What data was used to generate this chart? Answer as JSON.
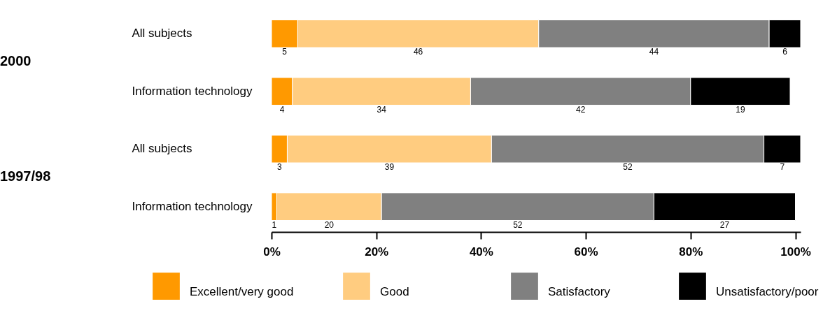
{
  "chart_data": {
    "type": "bar",
    "orientation": "horizontal",
    "stacked": true,
    "data_labels": true,
    "legend": "bottom",
    "categories": [
      "All subjects",
      "Information technology",
      "All subjects",
      "Information technology"
    ],
    "series": [
      {
        "name": "Excellent/very good",
        "color": "#ff9900",
        "values": [
          5,
          4,
          3,
          1
        ]
      },
      {
        "name": "Good",
        "color": "#ffcc80",
        "values": [
          46,
          34,
          39,
          20
        ]
      },
      {
        "name": "Satisfactory",
        "color": "#808080",
        "values": [
          44,
          42,
          52,
          52
        ]
      },
      {
        "name": "Unsatisfactory/poor",
        "color": "#000000",
        "values": [
          6,
          19,
          7,
          27
        ]
      }
    ],
    "xlim": [
      0,
      101
    ],
    "xticks": [
      {
        "value": 0,
        "label": "0%"
      },
      {
        "value": 20,
        "label": "20%"
      },
      {
        "value": 40,
        "label": "40%"
      },
      {
        "value": 60,
        "label": "60%"
      },
      {
        "value": 80,
        "label": "80%"
      },
      {
        "value": 100,
        "label": "100%"
      }
    ],
    "annotations": [
      "2000",
      "1997/98"
    ]
  }
}
